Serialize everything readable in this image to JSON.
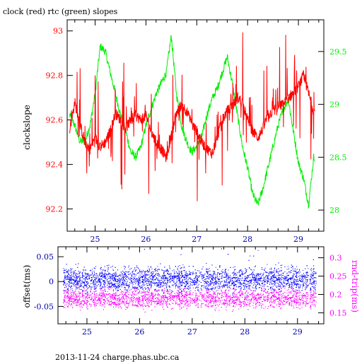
{
  "page": {
    "title": "clock (red) rtc (green) slopes",
    "footer": "2013-11-24 charge.phas.ubc.ca"
  },
  "colors": {
    "clock": "#ff0000",
    "rtc": "#00ee00",
    "offset": "#0000ff",
    "rndtrip": "#ff00ff",
    "axis": "#000000"
  },
  "chart_data": [
    {
      "type": "line",
      "ylabel": "clockslope",
      "y2label": "",
      "xlim": [
        24.45,
        29.5
      ],
      "ylim": [
        92.1,
        93.05
      ],
      "y2lim": [
        27.8,
        29.8
      ],
      "xticks": [
        25,
        26,
        27,
        28,
        29
      ],
      "yticks": [
        92.2,
        92.4,
        92.6,
        92.8,
        93
      ],
      "y2ticks": [
        28,
        28.5,
        29,
        29.5
      ],
      "grid": false,
      "series": [
        {
          "name": "clock",
          "color": "#ff0000",
          "axis": "left",
          "x": [
            24.5,
            24.6,
            24.7,
            24.8,
            24.9,
            25.0,
            25.1,
            25.2,
            25.3,
            25.4,
            25.5,
            25.6,
            25.7,
            25.8,
            25.9,
            26.0,
            26.1,
            26.2,
            26.3,
            26.4,
            26.5,
            26.6,
            26.7,
            26.8,
            26.9,
            27.0,
            27.1,
            27.2,
            27.3,
            27.4,
            27.5,
            27.6,
            27.7,
            27.8,
            27.9,
            28.0,
            28.1,
            28.2,
            28.3,
            28.4,
            28.5,
            28.6,
            28.7,
            28.8,
            28.9,
            29.0,
            29.1,
            29.2,
            29.3
          ],
          "y": [
            92.55,
            92.68,
            92.58,
            92.5,
            92.47,
            92.52,
            92.48,
            92.5,
            92.55,
            92.63,
            92.6,
            92.56,
            92.6,
            92.62,
            92.6,
            92.62,
            92.55,
            92.5,
            92.47,
            92.43,
            92.53,
            92.63,
            92.67,
            92.64,
            92.58,
            92.55,
            92.5,
            92.47,
            92.45,
            92.52,
            92.6,
            92.64,
            92.66,
            92.7,
            92.68,
            92.6,
            92.55,
            92.52,
            92.56,
            92.62,
            92.64,
            92.66,
            92.67,
            92.7,
            92.72,
            92.75,
            92.8,
            92.72,
            92.64
          ]
        },
        {
          "name": "rtc",
          "color": "#00ee00",
          "axis": "right",
          "x": [
            24.5,
            24.6,
            24.7,
            24.8,
            24.9,
            25.0,
            25.1,
            25.2,
            25.3,
            25.4,
            25.5,
            25.6,
            25.7,
            25.8,
            25.9,
            26.0,
            26.1,
            26.2,
            26.3,
            26.4,
            26.5,
            26.6,
            26.7,
            26.8,
            26.9,
            27.0,
            27.1,
            27.2,
            27.3,
            27.4,
            27.5,
            27.6,
            27.7,
            27.8,
            27.9,
            28.0,
            28.1,
            28.2,
            28.3,
            28.4,
            28.5,
            28.6,
            28.7,
            28.8,
            28.9,
            29.0,
            29.1,
            29.2,
            29.3
          ],
          "y": [
            28.9,
            28.8,
            28.65,
            28.65,
            28.8,
            29.1,
            29.55,
            29.5,
            29.3,
            29.1,
            28.9,
            28.75,
            28.55,
            28.5,
            28.6,
            28.8,
            28.95,
            29.1,
            29.2,
            29.3,
            29.65,
            29.1,
            28.8,
            28.65,
            28.55,
            28.6,
            28.7,
            28.9,
            29.05,
            29.15,
            29.3,
            29.45,
            29.2,
            28.9,
            28.6,
            28.4,
            28.15,
            28.05,
            28.2,
            28.4,
            28.6,
            28.8,
            28.95,
            29.05,
            28.75,
            28.45,
            28.3,
            28.05,
            28.5
          ]
        }
      ]
    },
    {
      "type": "scatter",
      "ylabel": "offset(ms)",
      "y2label": "rnd-trip(ms)",
      "xlim": [
        24.45,
        29.5
      ],
      "ylim": [
        -0.085,
        0.07
      ],
      "y2lim": [
        0.12,
        0.33
      ],
      "xticks": [
        25,
        26,
        27,
        28,
        29
      ],
      "yticks": [
        -0.05,
        0,
        0.05
      ],
      "y2ticks": [
        0.15,
        0.2,
        0.25,
        0.3
      ],
      "grid": false,
      "series": [
        {
          "name": "offset",
          "color": "#0000ff",
          "axis": "left",
          "center": 0.005,
          "spread": 0.018,
          "x_range": [
            24.55,
            29.35
          ]
        },
        {
          "name": "rnd-trip",
          "color": "#ff00ff",
          "axis": "right",
          "center": 0.19,
          "spread": 0.02,
          "x_range": [
            24.55,
            29.35
          ]
        }
      ]
    }
  ]
}
